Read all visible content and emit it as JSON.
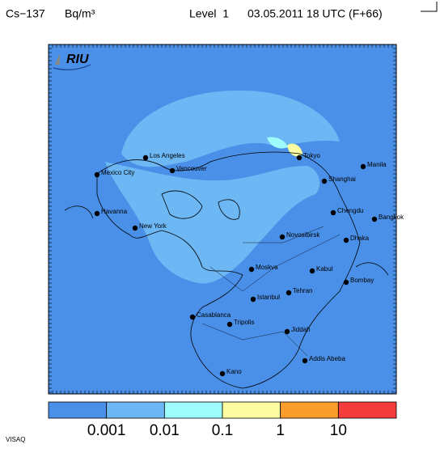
{
  "header": {
    "substance": "Cs−137",
    "unit": "Bq/m³",
    "level": "Level  1",
    "time": "03.05.2011 18 UTC (F+66)"
  },
  "logo": "RIU",
  "cities": [
    "Los Angeles",
    "Tokyo",
    "Mexico City",
    "Vancouver",
    "Manila",
    "Shanghai",
    "Havanna",
    "Chengdu",
    "Bangkok",
    "New York",
    "Novosibirsk",
    "Dhaka",
    "Moskva",
    "Kabul",
    "Bombay",
    "Tehran",
    "Istanbul",
    "Casablanca",
    "Tripolis",
    "Jiddah",
    "Addis Abeba",
    "Kano"
  ],
  "legend": {
    "colors": [
      "#4a90e8",
      "#6db7f4",
      "#9ffcfc",
      "#fdfca0",
      "#fb9d2c",
      "#f43c3c"
    ],
    "ticks": [
      0.001,
      0.01,
      0.1,
      1,
      10
    ]
  },
  "footer": "VISAQ"
}
